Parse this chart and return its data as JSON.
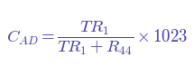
{
  "formula": "$C_{AD} = \\dfrac{TR_1}{TR_1 + R_{44}} \\times 1023$",
  "background_color": "#ffffff",
  "text_color": "#3a3aaa",
  "fontsize": 13.5,
  "fig_width": 2.15,
  "fig_height": 0.84
}
